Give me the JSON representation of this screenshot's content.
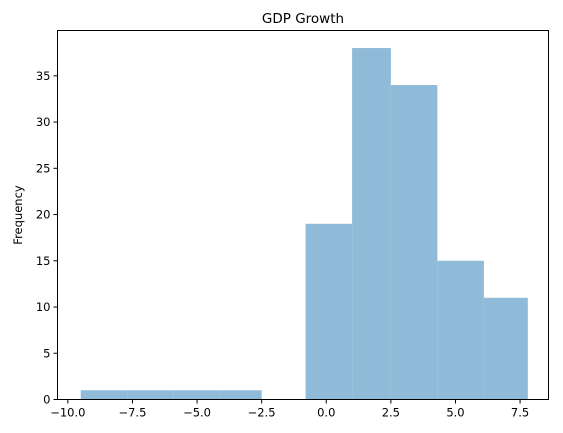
{
  "chart_data": {
    "type": "bar",
    "title": "GDP Growth",
    "xlabel": "",
    "ylabel": "Frequency",
    "bins": [
      {
        "x0": -9.5,
        "x1": -7.7,
        "count": 1
      },
      {
        "x0": -7.7,
        "x1": -5.9,
        "count": 1
      },
      {
        "x0": -5.9,
        "x1": -4.1,
        "count": 1
      },
      {
        "x0": -4.1,
        "x1": -2.5,
        "count": 1
      },
      {
        "x0": -2.5,
        "x1": -0.8,
        "count": 0
      },
      {
        "x0": -0.8,
        "x1": 1.0,
        "count": 19
      },
      {
        "x0": 1.0,
        "x1": 2.5,
        "count": 38
      },
      {
        "x0": 2.5,
        "x1": 4.3,
        "count": 34
      },
      {
        "x0": 4.3,
        "x1": 6.1,
        "count": 15
      },
      {
        "x0": 6.1,
        "x1": 7.8,
        "count": 11
      }
    ],
    "xlim": [
      -10.4,
      8.6
    ],
    "ylim": [
      0,
      39.9
    ],
    "xticks": [
      -10.0,
      -7.5,
      -5.0,
      -2.5,
      0.0,
      2.5,
      5.0,
      7.5
    ],
    "xtick_labels": [
      "−10.0",
      "−7.5",
      "−5.0",
      "−2.5",
      "0.0",
      "2.5",
      "5.0",
      "7.5"
    ],
    "yticks": [
      0,
      5,
      10,
      15,
      20,
      25,
      30,
      35
    ],
    "ytick_labels": [
      "0",
      "5",
      "10",
      "15",
      "20",
      "25",
      "30",
      "35"
    ],
    "bar_color": "#8fbad8",
    "grid": false
  }
}
